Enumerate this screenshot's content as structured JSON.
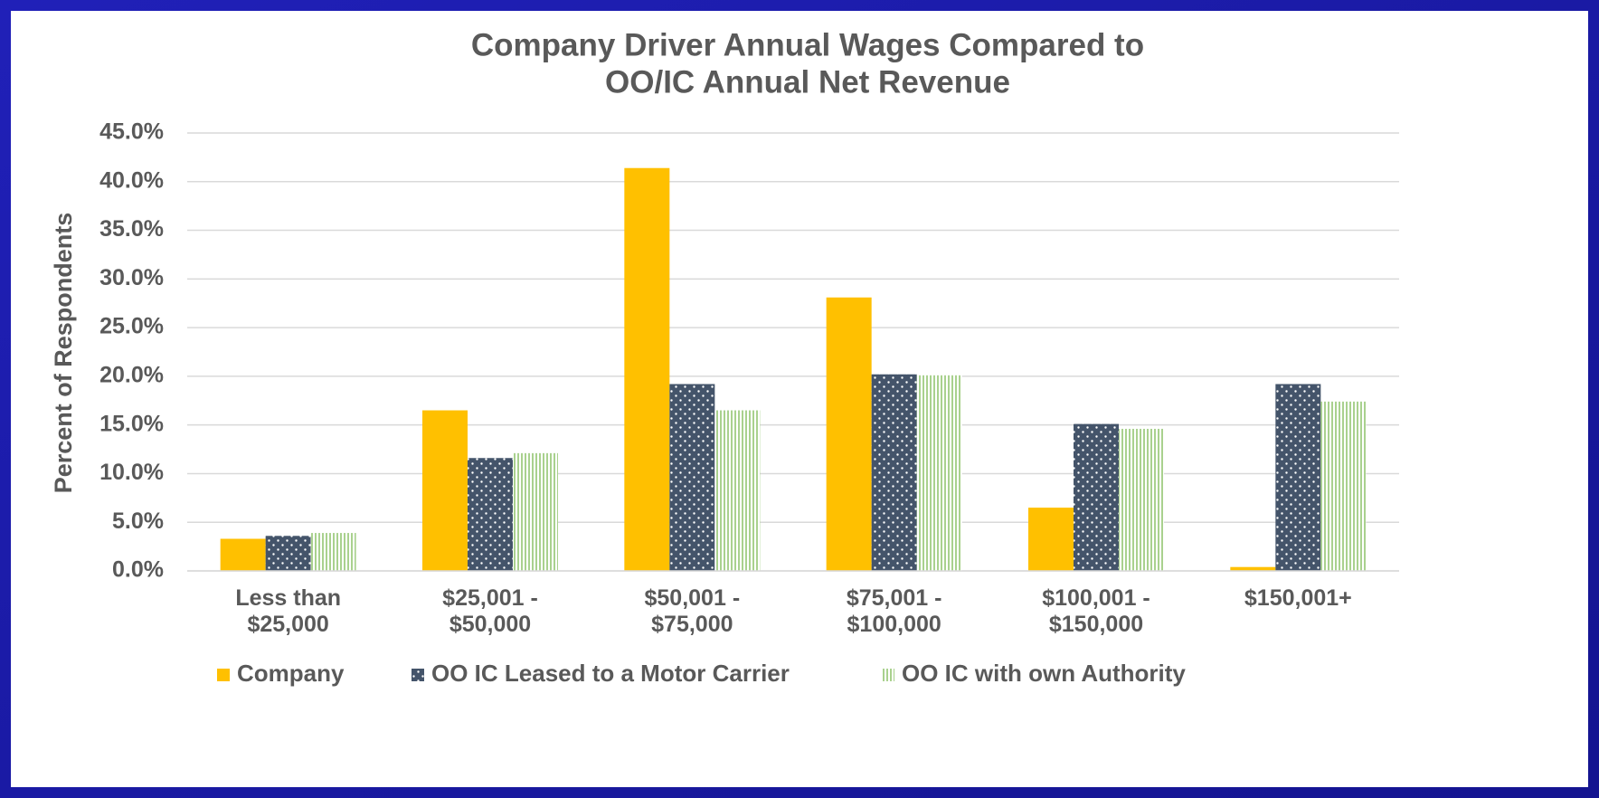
{
  "chart_data": {
    "type": "bar",
    "title": [
      "Company Driver Annual Wages Compared to",
      "OO/IC Annual Net Revenue"
    ],
    "y_label": "Percent of Respondents",
    "categories": [
      [
        "Less than",
        "$25,000"
      ],
      [
        "$25,001 -",
        "$50,000"
      ],
      [
        "$50,001 -",
        "$75,000"
      ],
      [
        "$75,001 -",
        "$100,000"
      ],
      [
        "$100,001 -",
        "$150,000"
      ],
      [
        "$150,001+"
      ]
    ],
    "series": [
      {
        "name": "Company",
        "color": "#ffc000",
        "pattern": "solid",
        "values": [
          3.3,
          16.5,
          41.4,
          28.1,
          6.5,
          0.4
        ]
      },
      {
        "name": "OO IC Leased to a Motor Carrier",
        "color": "#44546a",
        "pattern": "dots",
        "values": [
          3.6,
          11.6,
          19.2,
          20.2,
          15.1,
          19.2
        ]
      },
      {
        "name": "OO IC with own Authority",
        "color": "#a9d18e",
        "pattern": "stripes",
        "values": [
          3.9,
          12.1,
          16.5,
          20.1,
          14.6,
          17.4
        ]
      }
    ],
    "ylim": [
      0,
      45
    ],
    "yticks": [
      {
        "value": 0,
        "label": "0.0%"
      },
      {
        "value": 5,
        "label": "5.0%"
      },
      {
        "value": 10,
        "label": "10.0%"
      },
      {
        "value": 15,
        "label": "15.0%"
      },
      {
        "value": 20,
        "label": "20.0%"
      },
      {
        "value": 25,
        "label": "25.0%"
      },
      {
        "value": 30,
        "label": "30.0%"
      },
      {
        "value": 35,
        "label": "35.0%"
      },
      {
        "value": 40,
        "label": "40.0%"
      },
      {
        "value": 45,
        "label": "45.0%"
      }
    ],
    "grid": true,
    "legend": "bottom"
  }
}
